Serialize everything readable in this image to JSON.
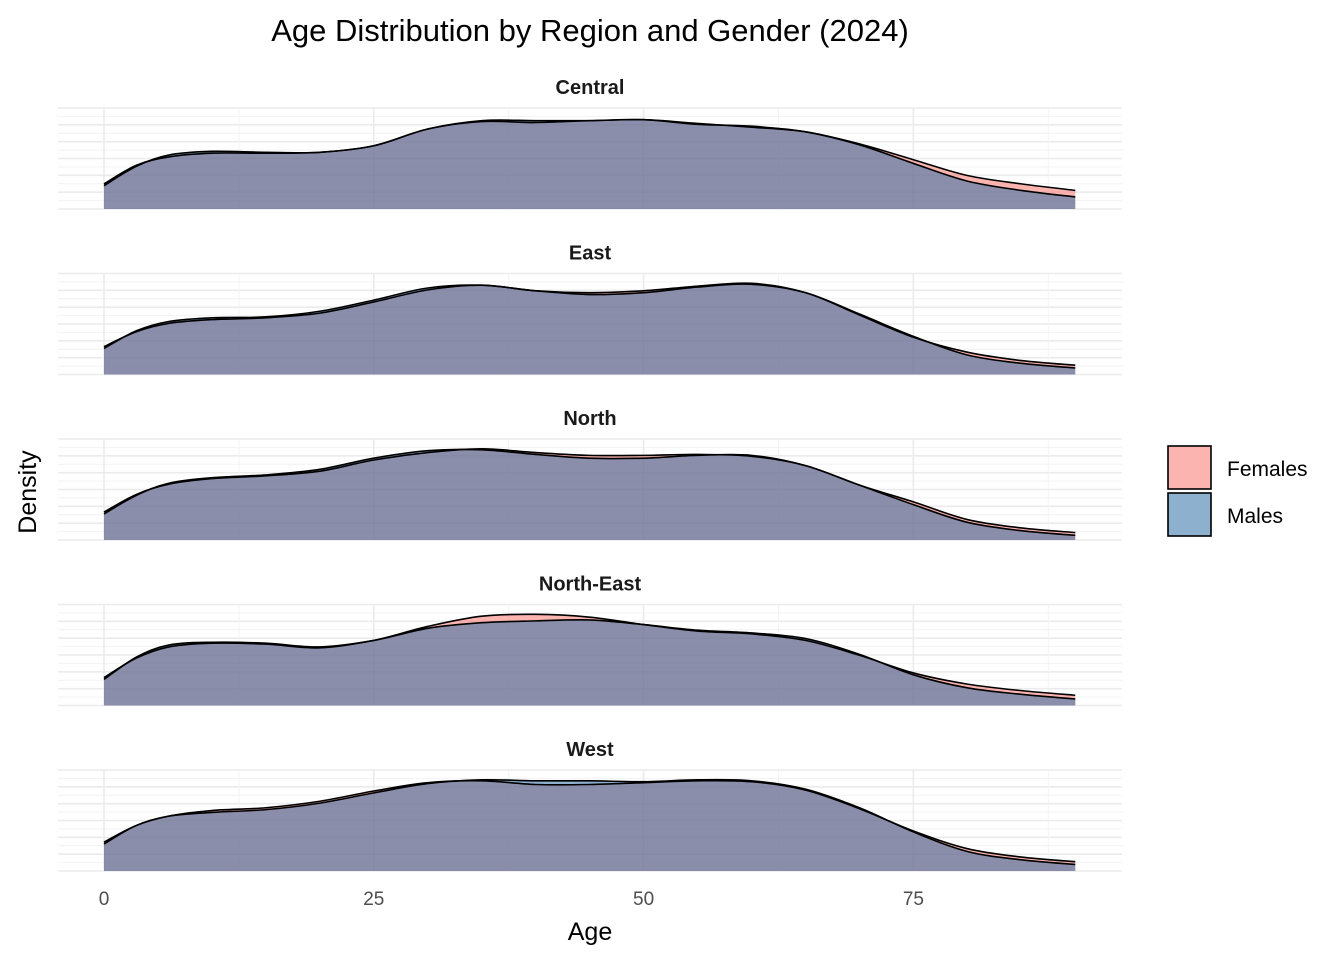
{
  "chart_data": {
    "type": "area",
    "title": "Age Distribution by Region and Gender (2024)",
    "xlabel": "Age",
    "ylabel": "Density",
    "xlim": [
      -8,
      95
    ],
    "x_ticks": [
      0,
      25,
      50,
      75
    ],
    "x_tick_labels": [
      "0",
      "25",
      "50",
      "75"
    ],
    "legend": {
      "position": "right",
      "entries": [
        {
          "name": "Females",
          "color": "#F8766D"
        },
        {
          "name": "Males",
          "color": "#2F6FA8"
        }
      ]
    },
    "grid": true,
    "x": [
      0,
      3,
      6,
      10,
      15,
      20,
      25,
      30,
      35,
      40,
      45,
      50,
      55,
      60,
      65,
      70,
      75,
      80,
      85,
      90
    ],
    "panels": [
      {
        "region": "Central",
        "series": [
          {
            "name": "Females",
            "values": [
              0.27,
              0.47,
              0.56,
              0.6,
              0.6,
              0.61,
              0.68,
              0.86,
              0.94,
              0.93,
              0.95,
              0.96,
              0.92,
              0.88,
              0.83,
              0.7,
              0.53,
              0.36,
              0.27,
              0.2
            ]
          },
          {
            "name": "Males",
            "values": [
              0.25,
              0.46,
              0.58,
              0.62,
              0.61,
              0.61,
              0.68,
              0.86,
              0.95,
              0.95,
              0.95,
              0.96,
              0.91,
              0.89,
              0.83,
              0.69,
              0.49,
              0.3,
              0.2,
              0.13
            ]
          }
        ]
      },
      {
        "region": "East",
        "series": [
          {
            "name": "Females",
            "values": [
              0.3,
              0.46,
              0.55,
              0.59,
              0.61,
              0.66,
              0.78,
              0.91,
              0.96,
              0.9,
              0.88,
              0.9,
              0.95,
              0.98,
              0.88,
              0.64,
              0.4,
              0.24,
              0.15,
              0.1
            ]
          },
          {
            "name": "Males",
            "values": [
              0.28,
              0.47,
              0.57,
              0.61,
              0.62,
              0.68,
              0.8,
              0.93,
              0.96,
              0.9,
              0.86,
              0.88,
              0.94,
              0.97,
              0.88,
              0.65,
              0.41,
              0.21,
              0.12,
              0.07
            ]
          }
        ]
      },
      {
        "region": "North",
        "series": [
          {
            "name": "Females",
            "values": [
              0.3,
              0.49,
              0.6,
              0.66,
              0.69,
              0.74,
              0.86,
              0.94,
              0.98,
              0.94,
              0.91,
              0.91,
              0.92,
              0.9,
              0.8,
              0.59,
              0.41,
              0.22,
              0.13,
              0.08
            ]
          },
          {
            "name": "Males",
            "values": [
              0.28,
              0.48,
              0.61,
              0.67,
              0.7,
              0.76,
              0.88,
              0.96,
              0.97,
              0.92,
              0.88,
              0.88,
              0.91,
              0.91,
              0.8,
              0.59,
              0.38,
              0.19,
              0.1,
              0.05
            ]
          }
        ]
      },
      {
        "region": "North-East",
        "series": [
          {
            "name": "Females",
            "values": [
              0.3,
              0.51,
              0.63,
              0.67,
              0.66,
              0.62,
              0.7,
              0.85,
              0.96,
              0.98,
              0.95,
              0.87,
              0.8,
              0.77,
              0.7,
              0.54,
              0.35,
              0.23,
              0.16,
              0.11
            ]
          },
          {
            "name": "Males",
            "values": [
              0.28,
              0.52,
              0.65,
              0.68,
              0.67,
              0.63,
              0.7,
              0.83,
              0.89,
              0.91,
              0.92,
              0.87,
              0.81,
              0.78,
              0.72,
              0.55,
              0.33,
              0.19,
              0.12,
              0.07
            ]
          }
        ]
      },
      {
        "region": "West",
        "series": [
          {
            "name": "Females",
            "values": [
              0.31,
              0.49,
              0.59,
              0.65,
              0.68,
              0.75,
              0.86,
              0.95,
              0.97,
              0.93,
              0.93,
              0.95,
              0.97,
              0.96,
              0.87,
              0.67,
              0.43,
              0.24,
              0.15,
              0.1
            ]
          },
          {
            "name": "Males",
            "values": [
              0.29,
              0.49,
              0.59,
              0.63,
              0.66,
              0.73,
              0.84,
              0.94,
              0.98,
              0.97,
              0.97,
              0.96,
              0.98,
              0.97,
              0.88,
              0.68,
              0.42,
              0.21,
              0.12,
              0.07
            ]
          }
        ]
      }
    ]
  }
}
